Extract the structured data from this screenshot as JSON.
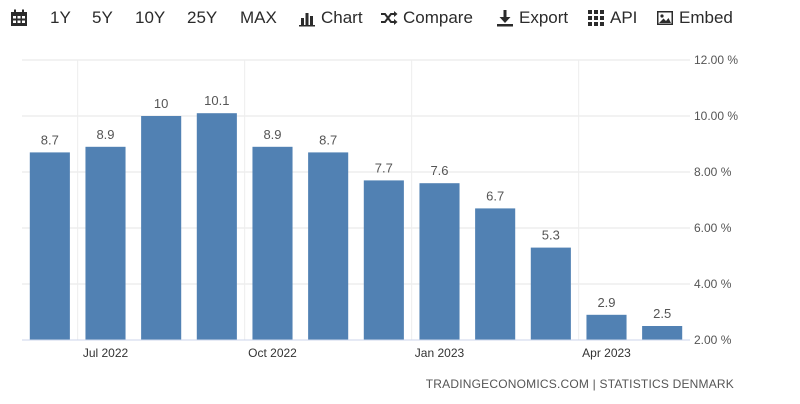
{
  "toolbar": {
    "items": [
      {
        "name": "calendar-icon",
        "label": ""
      },
      {
        "name": "range-1y",
        "label": "1Y"
      },
      {
        "name": "range-5y",
        "label": "5Y"
      },
      {
        "name": "range-10y",
        "label": "10Y"
      },
      {
        "name": "range-25y",
        "label": "25Y"
      },
      {
        "name": "range-max",
        "label": "MAX"
      },
      {
        "name": "chart-button",
        "label": "Chart",
        "icon": "bar-chart-icon"
      },
      {
        "name": "compare-button",
        "label": "Compare",
        "icon": "shuffle-icon"
      },
      {
        "name": "export-button",
        "label": "Export",
        "icon": "download-icon"
      },
      {
        "name": "api-button",
        "label": "API",
        "icon": "grid-icon"
      },
      {
        "name": "embed-button",
        "label": "Embed",
        "icon": "image-icon"
      }
    ]
  },
  "source": "TRADINGECONOMICS.COM | STATISTICS DENMARK",
  "colors": {
    "bar": "#5181b3",
    "grid": "#e6e6e6",
    "text": "#555555"
  },
  "chart_data": {
    "type": "bar",
    "categories": [
      "Jun 2022",
      "Jul 2022",
      "Aug 2022",
      "Sep 2022",
      "Oct 2022",
      "Nov 2022",
      "Dec 2022",
      "Jan 2023",
      "Feb 2023",
      "Mar 2023",
      "Apr 2023",
      "May 2023"
    ],
    "values": [
      8.7,
      8.9,
      10,
      10.1,
      8.9,
      8.7,
      7.7,
      7.6,
      6.7,
      5.3,
      2.9,
      2.5
    ],
    "value_labels": [
      "8.7",
      "8.9",
      "10",
      "10.1",
      "8.9",
      "8.7",
      "7.7",
      "7.6",
      "6.7",
      "5.3",
      "2.9",
      "2.5"
    ],
    "x_tick_labels": [
      {
        "category": "Jul 2022",
        "label": "Jul 2022"
      },
      {
        "category": "Oct 2022",
        "label": "Oct 2022"
      },
      {
        "category": "Jan 2023",
        "label": "Jan 2023"
      },
      {
        "category": "Apr 2023",
        "label": "Apr 2023"
      }
    ],
    "y_ticks": [
      2,
      4,
      6,
      8,
      10,
      12
    ],
    "y_tick_labels": [
      "2.00 %",
      "4.00 %",
      "6.00 %",
      "8.00 %",
      "10.00 %",
      "12.00 %"
    ],
    "ylim": [
      2,
      12
    ],
    "grid": true,
    "y_axis_position": "right"
  }
}
